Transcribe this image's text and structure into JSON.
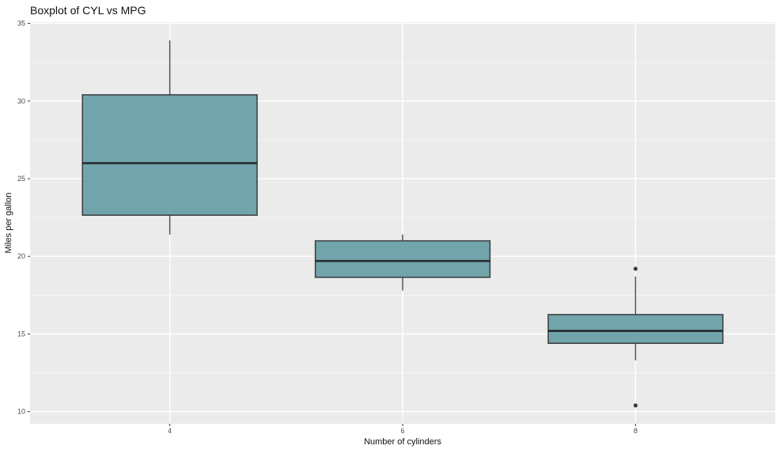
{
  "title": "Boxplot of CYL vs MPG",
  "colors": {
    "figure_bg": "#ffffff",
    "panel_bg": "#EBEBEB",
    "grid_major": "#FFFFFF",
    "grid_minor": "#F5F5F5",
    "box_fill": "#699FA7",
    "box_stroke": "#383C3D",
    "median_stroke": "#24282A",
    "whisker_stroke": "#4A4A4A",
    "outlier_fill": "#3B3B3B",
    "tick_mark": "#333333",
    "tick_label": "#4D4D4D",
    "axis_title": "#111111",
    "title_text": "#111111"
  },
  "chart_data": {
    "type": "boxplot",
    "title": "Boxplot of CYL vs MPG",
    "xlabel": "Number of cylinders",
    "ylabel": "Miles per gallon",
    "categories": [
      "4",
      "6",
      "8"
    ],
    "y_ticks": [
      10,
      15,
      20,
      25,
      30,
      35
    ],
    "y_minor_ticks": [
      12.5,
      17.5,
      22.5,
      27.5,
      32.5
    ],
    "ylim": [
      9.22,
      35.08
    ],
    "grid": true,
    "legend": "none",
    "series": [
      {
        "category": "4",
        "whisker_low": 21.4,
        "q1": 22.65,
        "median": 26.0,
        "q3": 30.4,
        "whisker_high": 33.9,
        "outliers": []
      },
      {
        "category": "6",
        "whisker_low": 17.8,
        "q1": 18.65,
        "median": 19.7,
        "q3": 21.0,
        "whisker_high": 21.4,
        "outliers": []
      },
      {
        "category": "8",
        "whisker_low": 13.3,
        "q1": 14.4,
        "median": 15.2,
        "q3": 16.25,
        "whisker_high": 18.7,
        "outliers": [
          19.2,
          10.4
        ]
      }
    ]
  }
}
